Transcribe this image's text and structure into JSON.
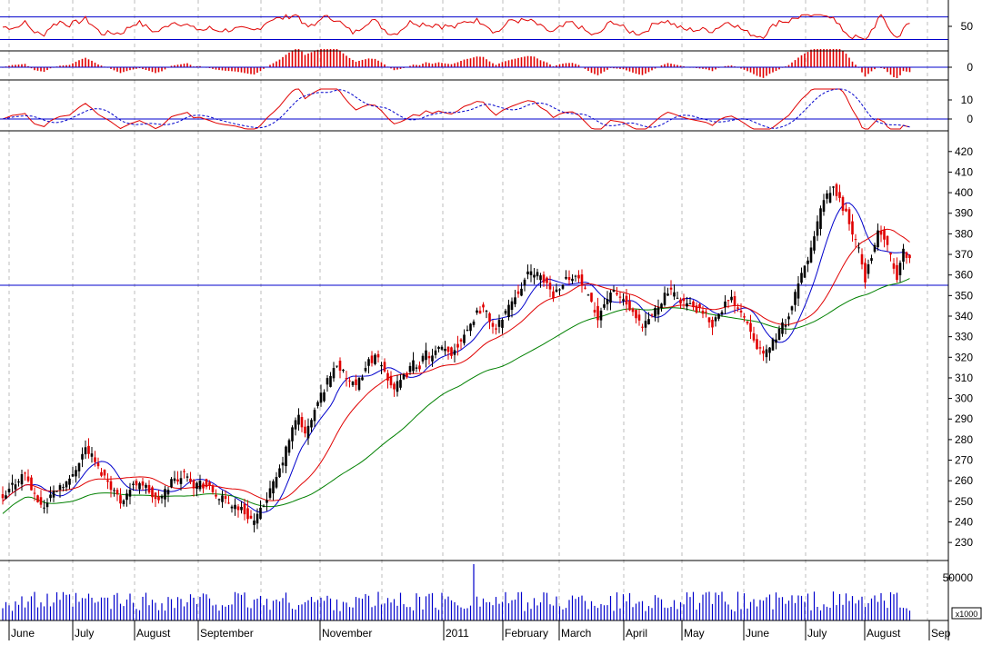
{
  "chart_data": [
    {
      "type": "line",
      "panel": "oscillator (RSI-style)",
      "y_ticks": [
        "50"
      ],
      "reference_levels": [
        70,
        30
      ],
      "colors": {
        "line": "#e00000",
        "reference": "#0000cc"
      },
      "x_ticks": [
        "June",
        "July",
        "August",
        "September",
        "November",
        "2011",
        "February",
        "March",
        "April",
        "May",
        "June",
        "July",
        "August",
        "Sep"
      ]
    },
    {
      "type": "bar",
      "panel": "histogram (MACD-style)",
      "y_ticks": [
        "0"
      ],
      "colors": {
        "bars": "#e00000",
        "zero_line": "#0000cc"
      }
    },
    {
      "type": "line",
      "panel": "momentum lines (MACD-style)",
      "y_ticks": [
        "10",
        "0"
      ],
      "colors": {
        "line": "#e00000",
        "signal": "#0000cc",
        "zero_line": "#0000cc"
      }
    },
    {
      "type": "candlestick",
      "panel": "price",
      "y_ticks": [
        "420",
        "410",
        "400",
        "390",
        "380",
        "370",
        "360",
        "350",
        "340",
        "330",
        "320",
        "310",
        "300",
        "290",
        "280",
        "270",
        "260",
        "250",
        "240",
        "230"
      ],
      "ylim": [
        223,
        423
      ],
      "reference_level": 355,
      "close_series": [
        [
          0,
          250
        ],
        [
          3,
          258
        ],
        [
          7,
          264
        ],
        [
          10,
          252
        ],
        [
          13,
          247
        ],
        [
          15,
          253
        ],
        [
          18,
          258
        ],
        [
          21,
          260
        ],
        [
          24,
          270
        ],
        [
          26,
          276
        ],
        [
          28,
          272
        ],
        [
          30,
          266
        ],
        [
          33,
          260
        ],
        [
          35,
          255
        ],
        [
          37,
          250
        ],
        [
          40,
          256
        ],
        [
          43,
          260
        ],
        [
          46,
          255
        ],
        [
          48,
          250
        ],
        [
          50,
          252
        ],
        [
          53,
          260
        ],
        [
          56,
          262
        ],
        [
          58,
          264
        ],
        [
          60,
          258
        ],
        [
          62,
          259
        ],
        [
          65,
          256
        ],
        [
          67,
          253
        ],
        [
          70,
          250
        ],
        [
          73,
          248
        ],
        [
          75,
          246
        ],
        [
          77,
          243
        ],
        [
          79,
          240
        ],
        [
          81,
          245
        ],
        [
          83,
          252
        ],
        [
          85,
          258
        ],
        [
          87,
          265
        ],
        [
          89,
          275
        ],
        [
          91,
          285
        ],
        [
          93,
          292
        ],
        [
          95,
          282
        ],
        [
          97,
          290
        ],
        [
          99,
          298
        ],
        [
          101,
          305
        ],
        [
          103,
          312
        ],
        [
          105,
          317
        ],
        [
          107,
          312
        ],
        [
          109,
          308
        ],
        [
          111,
          305
        ],
        [
          113,
          312
        ],
        [
          115,
          318
        ],
        [
          117,
          320
        ],
        [
          119,
          316
        ],
        [
          121,
          310
        ],
        [
          123,
          305
        ],
        [
          125,
          308
        ],
        [
          127,
          312
        ],
        [
          129,
          317
        ],
        [
          131,
          316
        ],
        [
          133,
          322
        ],
        [
          135,
          320
        ],
        [
          137,
          324
        ],
        [
          139,
          323
        ],
        [
          141,
          322
        ],
        [
          143,
          326
        ],
        [
          145,
          332
        ],
        [
          147,
          336
        ],
        [
          149,
          342
        ],
        [
          151,
          344
        ],
        [
          153,
          338
        ],
        [
          155,
          333
        ],
        [
          157,
          340
        ],
        [
          159,
          345
        ],
        [
          161,
          350
        ],
        [
          163,
          355
        ],
        [
          165,
          360
        ],
        [
          167,
          362
        ],
        [
          169,
          358
        ],
        [
          171,
          356
        ],
        [
          173,
          350
        ],
        [
          175,
          355
        ],
        [
          177,
          358
        ],
        [
          179,
          360
        ],
        [
          181,
          358
        ],
        [
          183,
          352
        ],
        [
          185,
          345
        ],
        [
          187,
          340
        ],
        [
          189,
          346
        ],
        [
          191,
          352
        ],
        [
          193,
          350
        ],
        [
          195,
          348
        ],
        [
          197,
          343
        ],
        [
          199,
          338
        ],
        [
          201,
          334
        ],
        [
          203,
          338
        ],
        [
          205,
          343
        ],
        [
          207,
          348
        ],
        [
          209,
          352
        ],
        [
          211,
          350
        ],
        [
          213,
          348
        ],
        [
          215,
          346
        ],
        [
          217,
          344
        ],
        [
          219,
          342
        ],
        [
          221,
          340
        ],
        [
          223,
          336
        ],
        [
          225,
          342
        ],
        [
          227,
          346
        ],
        [
          229,
          348
        ],
        [
          231,
          345
        ],
        [
          233,
          340
        ],
        [
          235,
          334
        ],
        [
          237,
          326
        ],
        [
          239,
          320
        ],
        [
          241,
          326
        ],
        [
          243,
          330
        ],
        [
          245,
          335
        ],
        [
          247,
          340
        ],
        [
          249,
          350
        ],
        [
          251,
          360
        ],
        [
          253,
          368
        ],
        [
          255,
          378
        ],
        [
          257,
          392
        ],
        [
          259,
          398
        ],
        [
          261,
          402
        ],
        [
          263,
          396
        ],
        [
          265,
          390
        ],
        [
          267,
          380
        ],
        [
          269,
          372
        ],
        [
          271,
          358
        ],
        [
          273,
          370
        ],
        [
          275,
          380
        ],
        [
          277,
          378
        ],
        [
          279,
          368
        ],
        [
          281,
          358
        ],
        [
          283,
          372
        ],
        [
          285,
          368
        ]
      ],
      "ma_short_color": "#0000cc",
      "ma_mid_color": "#e00000",
      "ma_long_color": "#008000",
      "up_color": "#000000",
      "down_color": "#e00000"
    },
    {
      "type": "bar",
      "panel": "volume",
      "y_ticks": [
        "50000"
      ],
      "multiplier": "x1000",
      "colors": {
        "bars": "#0000cc"
      }
    }
  ]
}
